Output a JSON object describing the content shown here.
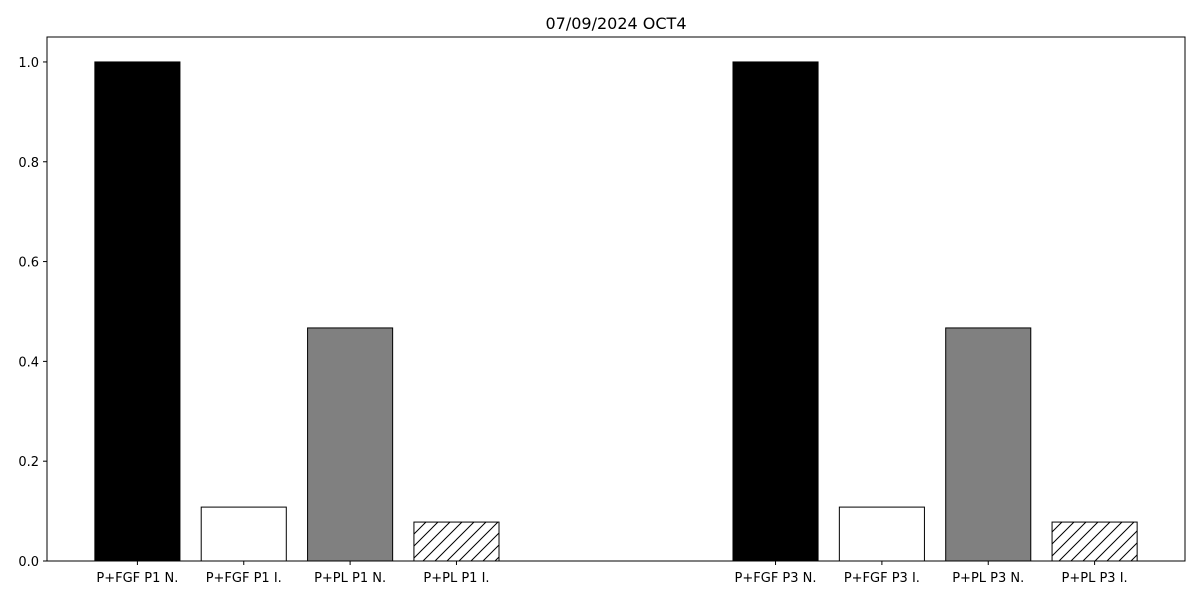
{
  "chart_data": {
    "type": "bar",
    "title": "07/09/2024 OCT4",
    "xlabel": "",
    "ylabel": "",
    "ylim": [
      0,
      1.05
    ],
    "yticks": [
      0.0,
      0.2,
      0.4,
      0.6,
      0.8,
      1.0
    ],
    "ytick_labels": [
      "0.0",
      "0.2",
      "0.4",
      "0.6",
      "0.8",
      "1.0"
    ],
    "grid": false,
    "legend": "none",
    "bars": [
      {
        "label": "P+FGF P1 N.",
        "x": 0,
        "value": 1.0,
        "fill": "#000000",
        "hatch": false
      },
      {
        "label": "P+FGF P1 I.",
        "x": 1,
        "value": 0.108,
        "fill": "#ffffff",
        "hatch": false
      },
      {
        "label": "P+PL P1 N.",
        "x": 2,
        "value": 0.467,
        "fill": "#808080",
        "hatch": false
      },
      {
        "label": "P+PL P1 I.",
        "x": 3,
        "value": 0.078,
        "fill": "#ffffff",
        "hatch": true
      },
      {
        "label": "P+FGF P3 N.",
        "x": 6,
        "value": 1.0,
        "fill": "#000000",
        "hatch": false
      },
      {
        "label": "P+FGF P3 I.",
        "x": 7,
        "value": 0.108,
        "fill": "#ffffff",
        "hatch": false
      },
      {
        "label": "P+PL P3 N.",
        "x": 8,
        "value": 0.467,
        "fill": "#808080",
        "hatch": false
      },
      {
        "label": "P+PL P3 I.",
        "x": 9,
        "value": 0.078,
        "fill": "#ffffff",
        "hatch": true
      }
    ],
    "edge_color": "#000000"
  }
}
